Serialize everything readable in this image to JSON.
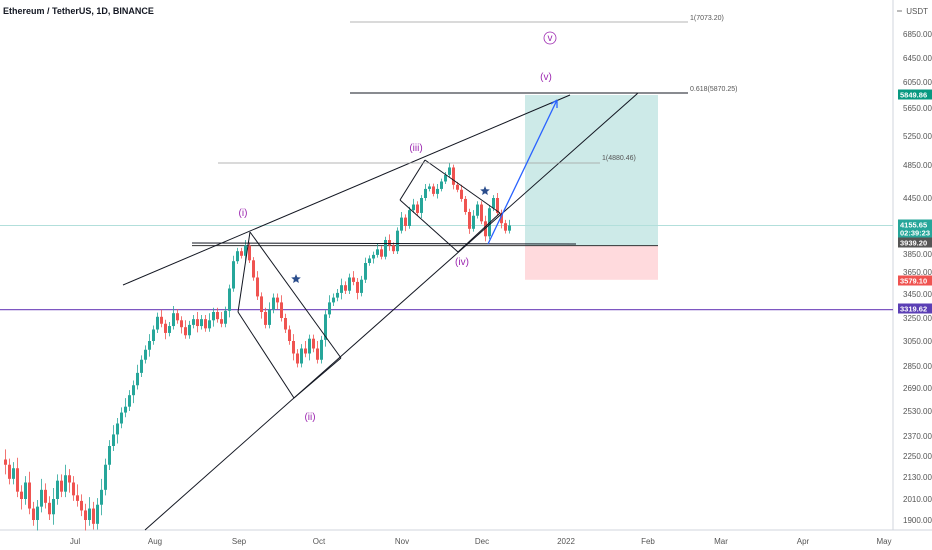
{
  "header": {
    "title": "Ethereum / TetherUS, 1D, BINANCE"
  },
  "currency": "USDT",
  "colors": {
    "up": "#26a69a",
    "down": "#ef5350",
    "wave": "#9c27b0",
    "arrow": "#2962ff",
    "star": "#2a4d8c"
  },
  "chart_data": {
    "type": "candlestick",
    "x_tick_labels": [
      "Jul",
      "Aug",
      "Sep",
      "Oct",
      "Nov",
      "Dec",
      "2022",
      "Feb",
      "Mar",
      "Apr",
      "May"
    ],
    "y_tick_labels": [
      "6850.00",
      "6450.00",
      "6050.00",
      "5650.00",
      "5250.00",
      "4850.00",
      "4450.00",
      "3850.00",
      "3650.00",
      "3450.00",
      "3250.00",
      "3050.00",
      "2850.00",
      "2690.00",
      "2530.00",
      "2370.00",
      "2250.00",
      "2130.00",
      "2010.00",
      "1900.00"
    ],
    "price_tags": [
      {
        "value": "5849.86",
        "color": "#089981"
      },
      {
        "value": "4155.65",
        "color": "#26a69a"
      },
      {
        "value": "02:39:23",
        "color": "#26a69a"
      },
      {
        "value": "3939.20",
        "color": "#555555"
      },
      {
        "value": "3579.10",
        "color": "#ef5350"
      },
      {
        "value": "3319.62",
        "color": "#5b3fb5"
      }
    ],
    "fib_levels": [
      {
        "label": "1(7073.20)",
        "value": 7073.2
      },
      {
        "label": "0.618(5870.25)",
        "value": 5870.25
      },
      {
        "label": "1(4880.46)",
        "value": 4880.46
      }
    ],
    "wave_labels": [
      "(i)",
      "(ii)",
      "(iii)",
      "(iv)",
      "(v)",
      "v"
    ],
    "horizontal_levels": [
      {
        "value": 4155.65,
        "color": "#b2dfdb"
      },
      {
        "value": 3319.62,
        "color": "#7e57c2"
      },
      {
        "value": 3939.2,
        "color": "#333333"
      }
    ],
    "position": {
      "entry": 3939.2,
      "target": 5849.86,
      "stop": 3579.1
    },
    "candles": [
      [
        2230,
        2200
      ],
      [
        2200,
        2120
      ],
      [
        2120,
        2180
      ],
      [
        2180,
        2050
      ],
      [
        2050,
        2010
      ],
      [
        2010,
        2100
      ],
      [
        2100,
        1960
      ],
      [
        1960,
        1900
      ],
      [
        1900,
        1970
      ],
      [
        1970,
        2060
      ],
      [
        2060,
        1990
      ],
      [
        1990,
        1930
      ],
      [
        1930,
        2010
      ],
      [
        2010,
        2110
      ],
      [
        2110,
        2050
      ],
      [
        2050,
        2140
      ],
      [
        2140,
        2100
      ],
      [
        2100,
        2030
      ],
      [
        2030,
        2000
      ],
      [
        2000,
        1950
      ],
      [
        1950,
        1900
      ],
      [
        1900,
        1960
      ],
      [
        1960,
        1880
      ],
      [
        1880,
        1980
      ],
      [
        1980,
        2060
      ],
      [
        2060,
        2200
      ],
      [
        2200,
        2310
      ],
      [
        2310,
        2380
      ],
      [
        2380,
        2450
      ],
      [
        2450,
        2520
      ],
      [
        2520,
        2560
      ],
      [
        2560,
        2640
      ],
      [
        2640,
        2710
      ],
      [
        2710,
        2800
      ],
      [
        2800,
        2900
      ],
      [
        2900,
        2980
      ],
      [
        2980,
        3050
      ],
      [
        3050,
        3150
      ],
      [
        3150,
        3260
      ],
      [
        3260,
        3200
      ],
      [
        3200,
        3120
      ],
      [
        3120,
        3180
      ],
      [
        3180,
        3290
      ],
      [
        3290,
        3230
      ],
      [
        3230,
        3170
      ],
      [
        3170,
        3100
      ],
      [
        3100,
        3190
      ],
      [
        3190,
        3240
      ],
      [
        3240,
        3180
      ],
      [
        3180,
        3240
      ],
      [
        3240,
        3160
      ],
      [
        3160,
        3230
      ],
      [
        3230,
        3300
      ],
      [
        3300,
        3240
      ],
      [
        3240,
        3200
      ],
      [
        3200,
        3310
      ],
      [
        3310,
        3500
      ],
      [
        3500,
        3770
      ],
      [
        3770,
        3880
      ],
      [
        3880,
        3830
      ],
      [
        3830,
        3940
      ],
      [
        3940,
        3780
      ],
      [
        3780,
        3600
      ],
      [
        3600,
        3430
      ],
      [
        3430,
        3300
      ],
      [
        3300,
        3190
      ],
      [
        3190,
        3320
      ],
      [
        3320,
        3420
      ],
      [
        3420,
        3380
      ],
      [
        3380,
        3250
      ],
      [
        3250,
        3150
      ],
      [
        3150,
        3050
      ],
      [
        3050,
        2950
      ],
      [
        2950,
        2870
      ],
      [
        2870,
        2990
      ],
      [
        2990,
        2950
      ],
      [
        2950,
        3070
      ],
      [
        3070,
        2990
      ],
      [
        2990,
        2900
      ],
      [
        2900,
        3060
      ],
      [
        3060,
        3280
      ],
      [
        3280,
        3380
      ],
      [
        3380,
        3420
      ],
      [
        3420,
        3460
      ],
      [
        3460,
        3530
      ],
      [
        3530,
        3480
      ],
      [
        3480,
        3600
      ],
      [
        3600,
        3560
      ],
      [
        3560,
        3460
      ],
      [
        3460,
        3580
      ],
      [
        3580,
        3750
      ],
      [
        3750,
        3800
      ],
      [
        3800,
        3840
      ],
      [
        3840,
        3900
      ],
      [
        3900,
        3820
      ],
      [
        3820,
        4000
      ],
      [
        4000,
        3940
      ],
      [
        3940,
        3880
      ],
      [
        3880,
        4100
      ],
      [
        4100,
        4240
      ],
      [
        4240,
        4150
      ],
      [
        4150,
        4320
      ],
      [
        4320,
        4380
      ],
      [
        4380,
        4290
      ],
      [
        4290,
        4450
      ],
      [
        4450,
        4560
      ],
      [
        4560,
        4590
      ],
      [
        4590,
        4500
      ],
      [
        4500,
        4560
      ],
      [
        4560,
        4650
      ],
      [
        4650,
        4730
      ],
      [
        4730,
        4820
      ],
      [
        4820,
        4610
      ],
      [
        4610,
        4550
      ],
      [
        4550,
        4440
      ],
      [
        4440,
        4300
      ],
      [
        4300,
        4120
      ],
      [
        4120,
        4260
      ],
      [
        4260,
        4380
      ],
      [
        4380,
        4200
      ],
      [
        4200,
        4040
      ],
      [
        4040,
        4340
      ],
      [
        4340,
        4450
      ],
      [
        4450,
        4290
      ],
      [
        4290,
        4180
      ],
      [
        4180,
        4100
      ],
      [
        4100,
        4155.65
      ]
    ]
  }
}
